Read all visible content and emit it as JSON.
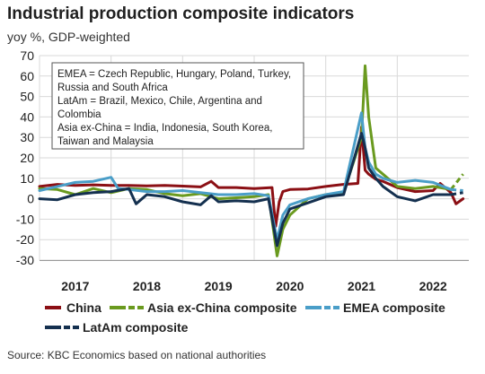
{
  "chart_data": {
    "type": "line",
    "title": "Industrial production composite indicators",
    "subtitle": "yoy %, GDP-weighted",
    "source": "Source: KBC Economics based on national authorities",
    "ylim": [
      -30,
      70
    ],
    "yticks": [
      70,
      60,
      50,
      40,
      30,
      20,
      10,
      0,
      -10,
      -20,
      -30
    ],
    "xlim": [
      2016.5,
      2022.5
    ],
    "xticks": [
      {
        "label": "2017",
        "at": 2017.0
      },
      {
        "label": "2018",
        "at": 2018.0
      },
      {
        "label": "2019",
        "at": 2019.0
      },
      {
        "label": "2020",
        "at": 2020.0
      },
      {
        "label": "2021",
        "at": 2021.0
      },
      {
        "label": "2022",
        "at": 2022.0
      }
    ],
    "annotation": [
      "EMEA = Czech Republic, Hungary, Poland, Turkey,",
      "Russia and South Africa",
      "LatAm = Brazil, Mexico, Chile, Argentina and",
      "Colombia",
      "Asia ex-China = India, Indonesia, South Korea,",
      "Taiwan and Malaysia"
    ],
    "series": [
      {
        "name": "China",
        "color": "#8b0f14",
        "legend_style": "solid",
        "dashed_tail": false,
        "points": [
          [
            2016.5,
            6
          ],
          [
            2016.75,
            7
          ],
          [
            2017.0,
            6.5
          ],
          [
            2017.25,
            6.8
          ],
          [
            2017.5,
            6.5
          ],
          [
            2017.75,
            6.5
          ],
          [
            2018.0,
            6.3
          ],
          [
            2018.25,
            6.5
          ],
          [
            2018.5,
            6.2
          ],
          [
            2018.75,
            5.8
          ],
          [
            2018.9,
            8.5
          ],
          [
            2019.0,
            5.5
          ],
          [
            2019.25,
            5.5
          ],
          [
            2019.5,
            5
          ],
          [
            2019.75,
            5.5
          ],
          [
            2019.8,
            -13.5
          ],
          [
            2019.85,
            -1.5
          ],
          [
            2019.9,
            3.5
          ],
          [
            2020.0,
            4.5
          ],
          [
            2020.25,
            4.8
          ],
          [
            2020.5,
            6
          ],
          [
            2020.75,
            7
          ],
          [
            2020.95,
            7.5
          ],
          [
            2021.0,
            35
          ],
          [
            2021.05,
            14
          ],
          [
            2021.1,
            12
          ],
          [
            2021.2,
            9.5
          ],
          [
            2021.3,
            8.5
          ],
          [
            2021.5,
            5.5
          ],
          [
            2021.75,
            3.5
          ],
          [
            2022.0,
            4
          ],
          [
            2022.1,
            7.5
          ],
          [
            2022.25,
            3
          ],
          [
            2022.32,
            -2.5
          ],
          [
            2022.42,
            0
          ]
        ]
      },
      {
        "name": "Asia ex-China composite",
        "color": "#6a9a1f",
        "legend_style": "solid-dash",
        "dashed_tail": true,
        "points": [
          [
            2016.5,
            5
          ],
          [
            2016.75,
            4.5
          ],
          [
            2017.0,
            2
          ],
          [
            2017.25,
            5
          ],
          [
            2017.5,
            3
          ],
          [
            2017.75,
            5
          ],
          [
            2018.0,
            4.5
          ],
          [
            2018.25,
            2.5
          ],
          [
            2018.5,
            1.5
          ],
          [
            2018.75,
            2.5
          ],
          [
            2019.0,
            0
          ],
          [
            2019.25,
            0.5
          ],
          [
            2019.5,
            1
          ],
          [
            2019.7,
            2
          ],
          [
            2019.82,
            -28
          ],
          [
            2019.9,
            -15
          ],
          [
            2020.0,
            -8
          ],
          [
            2020.25,
            0
          ],
          [
            2020.5,
            2
          ],
          [
            2020.75,
            3
          ],
          [
            2021.0,
            30
          ],
          [
            2021.05,
            65
          ],
          [
            2021.1,
            40
          ],
          [
            2021.2,
            15
          ],
          [
            2021.3,
            12
          ],
          [
            2021.5,
            6
          ],
          [
            2021.75,
            5
          ],
          [
            2022.0,
            6
          ],
          [
            2022.25,
            4.5
          ]
        ],
        "tail": [
          [
            2022.25,
            4.5
          ],
          [
            2022.42,
            12
          ]
        ]
      },
      {
        "name": "EMEA composite",
        "color": "#4a9ec8",
        "legend_style": "solid-dash",
        "dashed_tail": true,
        "points": [
          [
            2016.5,
            4
          ],
          [
            2016.75,
            6
          ],
          [
            2017.0,
            8
          ],
          [
            2017.25,
            8.5
          ],
          [
            2017.5,
            10.5
          ],
          [
            2017.6,
            5
          ],
          [
            2017.75,
            4.5
          ],
          [
            2018.0,
            3.5
          ],
          [
            2018.25,
            3.5
          ],
          [
            2018.5,
            4
          ],
          [
            2018.75,
            3
          ],
          [
            2019.0,
            2
          ],
          [
            2019.25,
            2
          ],
          [
            2019.5,
            2.5
          ],
          [
            2019.7,
            1.5
          ],
          [
            2019.82,
            -20
          ],
          [
            2019.9,
            -8
          ],
          [
            2020.0,
            -3
          ],
          [
            2020.25,
            0
          ],
          [
            2020.5,
            2
          ],
          [
            2020.75,
            3.5
          ],
          [
            2021.0,
            42
          ],
          [
            2021.05,
            25
          ],
          [
            2021.1,
            18
          ],
          [
            2021.2,
            12
          ],
          [
            2021.3,
            10
          ],
          [
            2021.5,
            8
          ],
          [
            2021.75,
            9
          ],
          [
            2022.0,
            8
          ],
          [
            2022.25,
            4.5
          ]
        ],
        "tail": [
          [
            2022.25,
            4.5
          ],
          [
            2022.42,
            4
          ]
        ]
      },
      {
        "name": "LatAm composite",
        "color": "#14304f",
        "legend_style": "solid-dash",
        "dashed_tail": true,
        "points": [
          [
            2016.5,
            0
          ],
          [
            2016.75,
            -0.5
          ],
          [
            2017.0,
            2
          ],
          [
            2017.25,
            3
          ],
          [
            2017.5,
            3.5
          ],
          [
            2017.75,
            5
          ],
          [
            2017.85,
            -2.5
          ],
          [
            2018.0,
            2
          ],
          [
            2018.25,
            1
          ],
          [
            2018.5,
            -1.5
          ],
          [
            2018.75,
            -3
          ],
          [
            2018.9,
            1.5
          ],
          [
            2019.0,
            -1.5
          ],
          [
            2019.25,
            -1
          ],
          [
            2019.5,
            -1.5
          ],
          [
            2019.7,
            0
          ],
          [
            2019.82,
            -23
          ],
          [
            2019.9,
            -12
          ],
          [
            2020.0,
            -5
          ],
          [
            2020.25,
            -2
          ],
          [
            2020.5,
            1
          ],
          [
            2020.75,
            2
          ],
          [
            2021.0,
            32
          ],
          [
            2021.05,
            25
          ],
          [
            2021.1,
            15
          ],
          [
            2021.2,
            10
          ],
          [
            2021.3,
            6
          ],
          [
            2021.5,
            1
          ],
          [
            2021.75,
            -1
          ],
          [
            2022.0,
            2
          ],
          [
            2022.25,
            2
          ]
        ],
        "tail": [
          [
            2022.25,
            2
          ],
          [
            2022.42,
            3
          ]
        ]
      }
    ]
  }
}
